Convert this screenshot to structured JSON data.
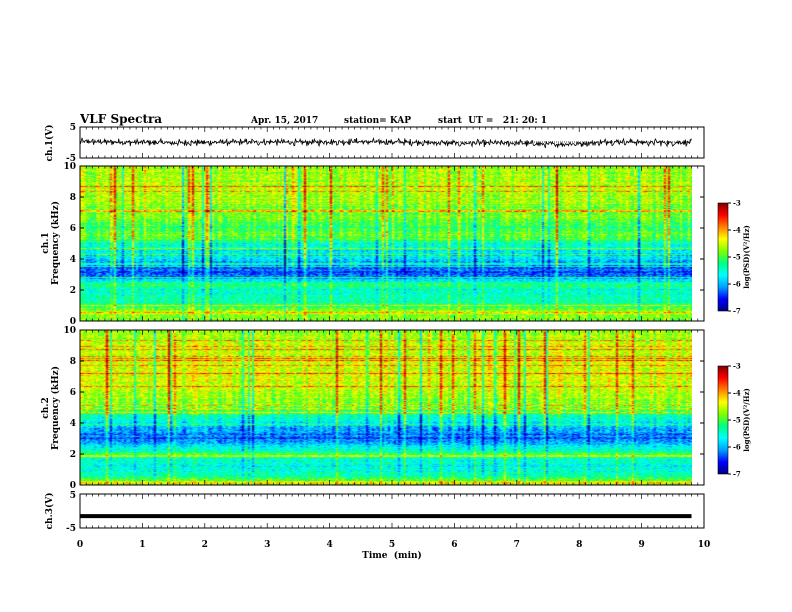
{
  "header": {
    "title": "VLF Spectra",
    "date": "Apr. 15, 2017",
    "station": "station= KAP",
    "start": "start  UT =   21: 20: 1"
  },
  "chart_data": [
    {
      "type": "line",
      "panel": "ch1-waveform",
      "ylabel": "ch.1(V)",
      "ylim": [
        -5,
        5
      ],
      "yticks": [
        "5",
        "-5"
      ],
      "x": [
        0,
        0.5,
        1,
        1.5,
        2,
        2.5,
        3,
        3.5,
        4,
        4.5,
        5,
        5.5,
        6,
        6.5,
        7,
        7.5,
        8,
        8.5,
        9,
        9.5,
        9.8
      ],
      "values": [
        0.3,
        0.2,
        0,
        -0.2,
        0,
        0.1,
        0.2,
        0,
        0.2,
        0.3,
        0.2,
        0,
        -0.3,
        -0.2,
        -0.2,
        -0.6,
        -0.4,
        0.3,
        0.1,
        0,
        0
      ],
      "noise_amplitude": 1.3
    },
    {
      "type": "heatmap",
      "panel": "ch1-spectrogram",
      "ylabel_top": "ch.1",
      "ylabel": "Frequency  (kHz)",
      "ylim": [
        0,
        10
      ],
      "yticks": [
        "0",
        "2",
        "4",
        "6",
        "8",
        "10"
      ],
      "colorbar": {
        "label": "log(PSD)(V²/Hz)",
        "range": [
          -7,
          -3
        ],
        "ticks": [
          "-3",
          "-4",
          "-5",
          "-6",
          "-7"
        ]
      },
      "band_profile": {
        "freq_khz": [
          0,
          0.5,
          1,
          1.5,
          2,
          2.3,
          2.7,
          3,
          3.5,
          4,
          4.5,
          5,
          5.5,
          6,
          6.5,
          7,
          8,
          9,
          10
        ],
        "log_psd": [
          -4.8,
          -4.6,
          -5.3,
          -5.4,
          -5.5,
          -5.2,
          -5.9,
          -6.4,
          -6.2,
          -5.8,
          -5.6,
          -5.4,
          -4.8,
          -5.1,
          -4.9,
          -4.8,
          -4.6,
          -4.6,
          -4.7
        ]
      }
    },
    {
      "type": "heatmap",
      "panel": "ch2-spectrogram",
      "ylabel_top": "ch.2",
      "ylabel": "Frequency  (kHz)",
      "ylim": [
        0,
        10
      ],
      "yticks": [
        "0",
        "2",
        "4",
        "6",
        "8",
        "10"
      ],
      "colorbar": {
        "label": "log(PSD)(V²/Hz)",
        "range": [
          -7,
          -3
        ],
        "ticks": [
          "-3",
          "-4",
          "-5",
          "-6",
          "-7"
        ]
      },
      "band_profile": {
        "freq_khz": [
          0,
          0.5,
          1,
          1.5,
          2,
          2.5,
          3,
          3.5,
          4,
          4.5,
          5,
          5.5,
          6,
          7,
          8,
          9,
          10
        ],
        "log_psd": [
          -4.9,
          -5.2,
          -5.6,
          -5.5,
          -5.1,
          -5.8,
          -6.3,
          -6.1,
          -5.7,
          -5.3,
          -4.8,
          -4.7,
          -4.6,
          -4.5,
          -4.5,
          -4.6,
          -4.7
        ]
      }
    },
    {
      "type": "line",
      "panel": "ch3-waveform",
      "ylabel": "ch.3(V)",
      "ylim": [
        -5,
        5
      ],
      "yticks": [
        "5",
        "-5"
      ],
      "x": [
        0,
        9.8
      ],
      "values": [
        -1.5,
        -1.5
      ]
    }
  ],
  "xaxis": {
    "label": "Time  (min)",
    "range": [
      0,
      10
    ],
    "ticks": [
      "0",
      "1",
      "2",
      "3",
      "4",
      "5",
      "6",
      "7",
      "8",
      "9",
      "10"
    ]
  },
  "colors": {
    "scale": [
      "#000080",
      "#0000ff",
      "#00a0ff",
      "#00ffff",
      "#00ff80",
      "#80ff00",
      "#ffff00",
      "#ff8000",
      "#ff0000",
      "#800000"
    ]
  }
}
